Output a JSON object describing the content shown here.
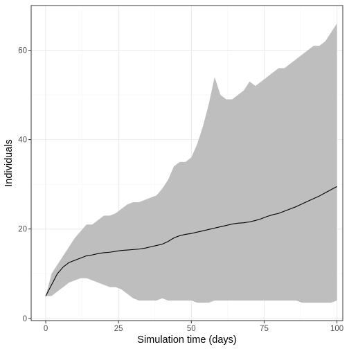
{
  "chart_data": {
    "type": "area",
    "xlabel": "Simulation time (days)",
    "ylabel": "Individuals",
    "xlim": [
      -5,
      102
    ],
    "ylim": [
      -0.5,
      70
    ],
    "x_ticks": [
      0,
      25,
      50,
      75,
      100
    ],
    "y_ticks": [
      0,
      20,
      40,
      60
    ],
    "grid": true,
    "colors": {
      "band": "#bebebe",
      "line": "#000000",
      "grid_major": "#ebebeb",
      "grid_minor": "#f5f5f5",
      "panel_border": "#333333"
    },
    "series": [
      {
        "kind": "ribbon",
        "x": [
          0,
          2,
          4,
          6,
          8,
          10,
          12,
          14,
          16,
          18,
          20,
          22,
          24,
          26,
          28,
          30,
          32,
          34,
          36,
          38,
          40,
          42,
          44,
          46,
          48,
          50,
          52,
          54,
          56,
          58,
          60,
          62,
          64,
          66,
          68,
          70,
          72,
          74,
          76,
          78,
          80,
          82,
          84,
          86,
          88,
          90,
          92,
          94,
          96,
          98,
          100
        ],
        "lower": [
          5,
          5,
          6,
          7,
          8,
          8.5,
          9,
          9,
          8.5,
          8,
          7.5,
          7,
          7,
          6.5,
          5.5,
          4.5,
          4,
          4,
          4,
          4,
          4.5,
          4,
          4,
          4,
          4,
          4,
          3.5,
          3.5,
          3.5,
          4,
          4,
          4,
          4,
          4,
          4,
          4,
          4,
          4,
          4,
          4,
          4,
          4,
          4,
          4,
          3.5,
          3.5,
          3.5,
          3.5,
          3.5,
          3.5,
          4
        ],
        "upper": [
          5,
          10,
          12,
          14,
          16,
          18,
          19.5,
          21,
          21,
          22,
          23,
          23,
          23.5,
          24.5,
          25.5,
          26,
          26,
          26.5,
          27,
          27.5,
          29,
          31,
          34,
          35,
          35,
          36,
          39,
          43,
          48,
          54,
          50,
          49,
          49,
          50,
          51,
          53,
          52,
          53,
          54,
          55,
          56,
          56,
          57,
          58,
          59,
          60,
          61,
          61,
          62,
          64,
          66
        ]
      },
      {
        "kind": "line",
        "x": [
          0,
          2,
          4,
          6,
          8,
          10,
          12,
          14,
          16,
          18,
          20,
          22,
          24,
          26,
          28,
          30,
          32,
          34,
          36,
          38,
          40,
          42,
          44,
          46,
          48,
          50,
          52,
          54,
          56,
          58,
          60,
          62,
          64,
          66,
          68,
          70,
          72,
          74,
          76,
          78,
          80,
          82,
          84,
          86,
          88,
          90,
          92,
          94,
          96,
          98,
          100
        ],
        "y": [
          5,
          7.5,
          10,
          11.5,
          12.5,
          13,
          13.5,
          14,
          14.2,
          14.5,
          14.7,
          14.8,
          15,
          15.2,
          15.3,
          15.4,
          15.5,
          15.7,
          16,
          16.3,
          16.6,
          17.2,
          18,
          18.5,
          18.8,
          19,
          19.3,
          19.6,
          19.9,
          20.2,
          20.5,
          20.8,
          21.1,
          21.3,
          21.4,
          21.6,
          21.9,
          22.3,
          22.8,
          23.2,
          23.5,
          24,
          24.5,
          25,
          25.6,
          26.2,
          26.8,
          27.4,
          28.1,
          28.8,
          29.5
        ]
      }
    ]
  }
}
